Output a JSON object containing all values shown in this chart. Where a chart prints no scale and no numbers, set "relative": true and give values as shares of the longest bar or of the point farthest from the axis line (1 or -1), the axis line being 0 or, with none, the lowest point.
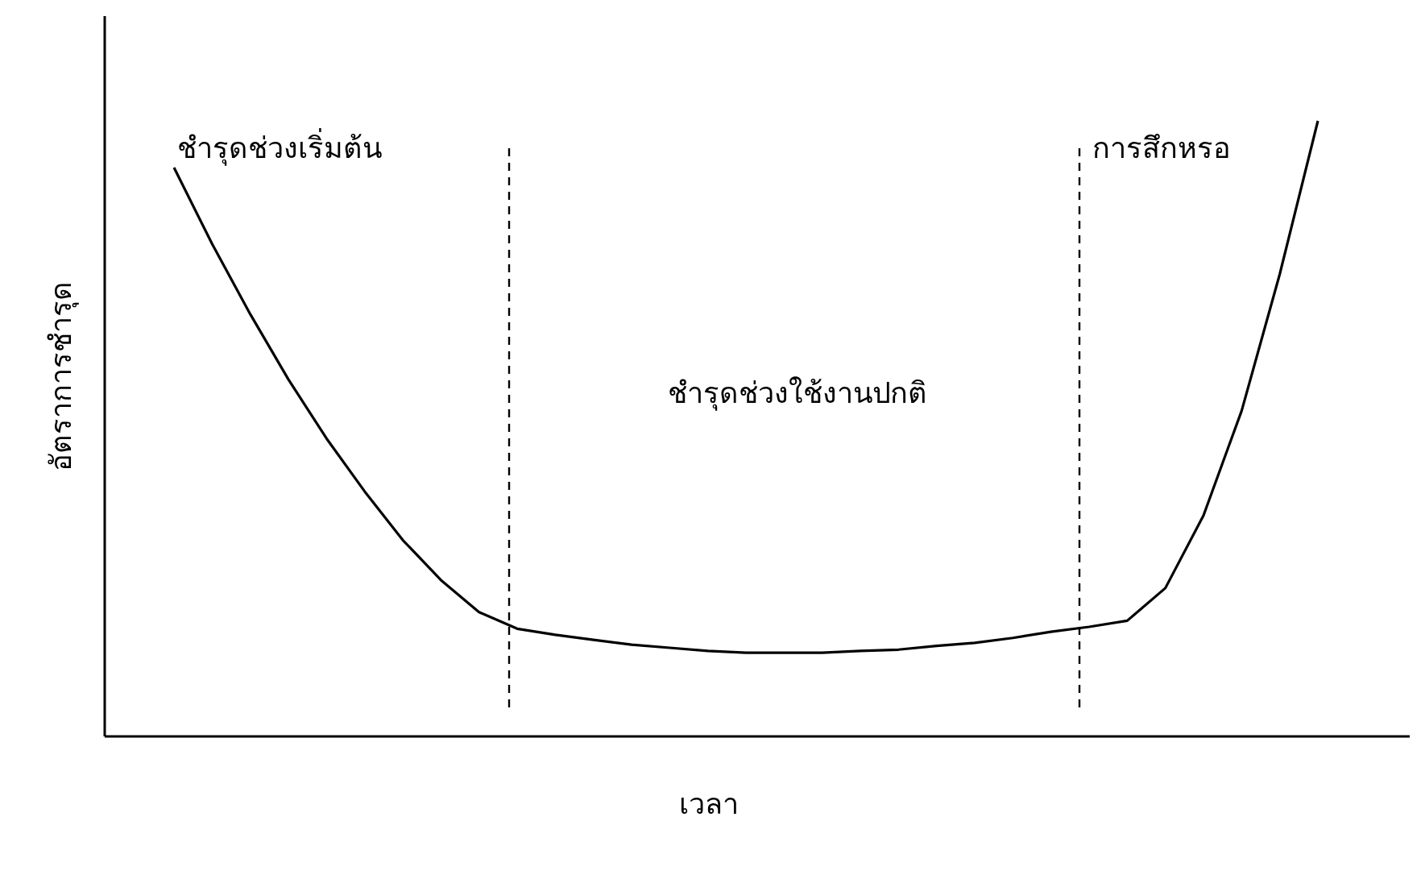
{
  "chart_data": {
    "type": "line",
    "relative": true,
    "xlabel": "เวลา",
    "ylabel": "อัตราการชำรุด",
    "categories": [
      null,
      null,
      null,
      null,
      null,
      null,
      null,
      null,
      null,
      null,
      null,
      null,
      null,
      null,
      null,
      null,
      null,
      null,
      null,
      null,
      null,
      null,
      null,
      null,
      null,
      null,
      null,
      null,
      null,
      null,
      null
    ],
    "series": [
      {
        "color": "#000000",
        "values": [
          0.924,
          0.8,
          0.686,
          0.58,
          0.484,
          0.398,
          0.319,
          0.254,
          0.202,
          0.175,
          0.165,
          0.157,
          0.149,
          0.144,
          0.139,
          0.136,
          0.136,
          0.136,
          0.139,
          0.141,
          0.147,
          0.152,
          0.16,
          0.17,
          0.178,
          0.188,
          0.241,
          0.359,
          0.529,
          0.751,
          1.0
        ]
      }
    ],
    "annotations": [
      "ชำรุดช่วงเริ่มต้น",
      "ชำรุดช่วงใช้งานปกติ",
      "การสึกหรอ"
    ],
    "marker": "none",
    "line_style": "solid"
  }
}
